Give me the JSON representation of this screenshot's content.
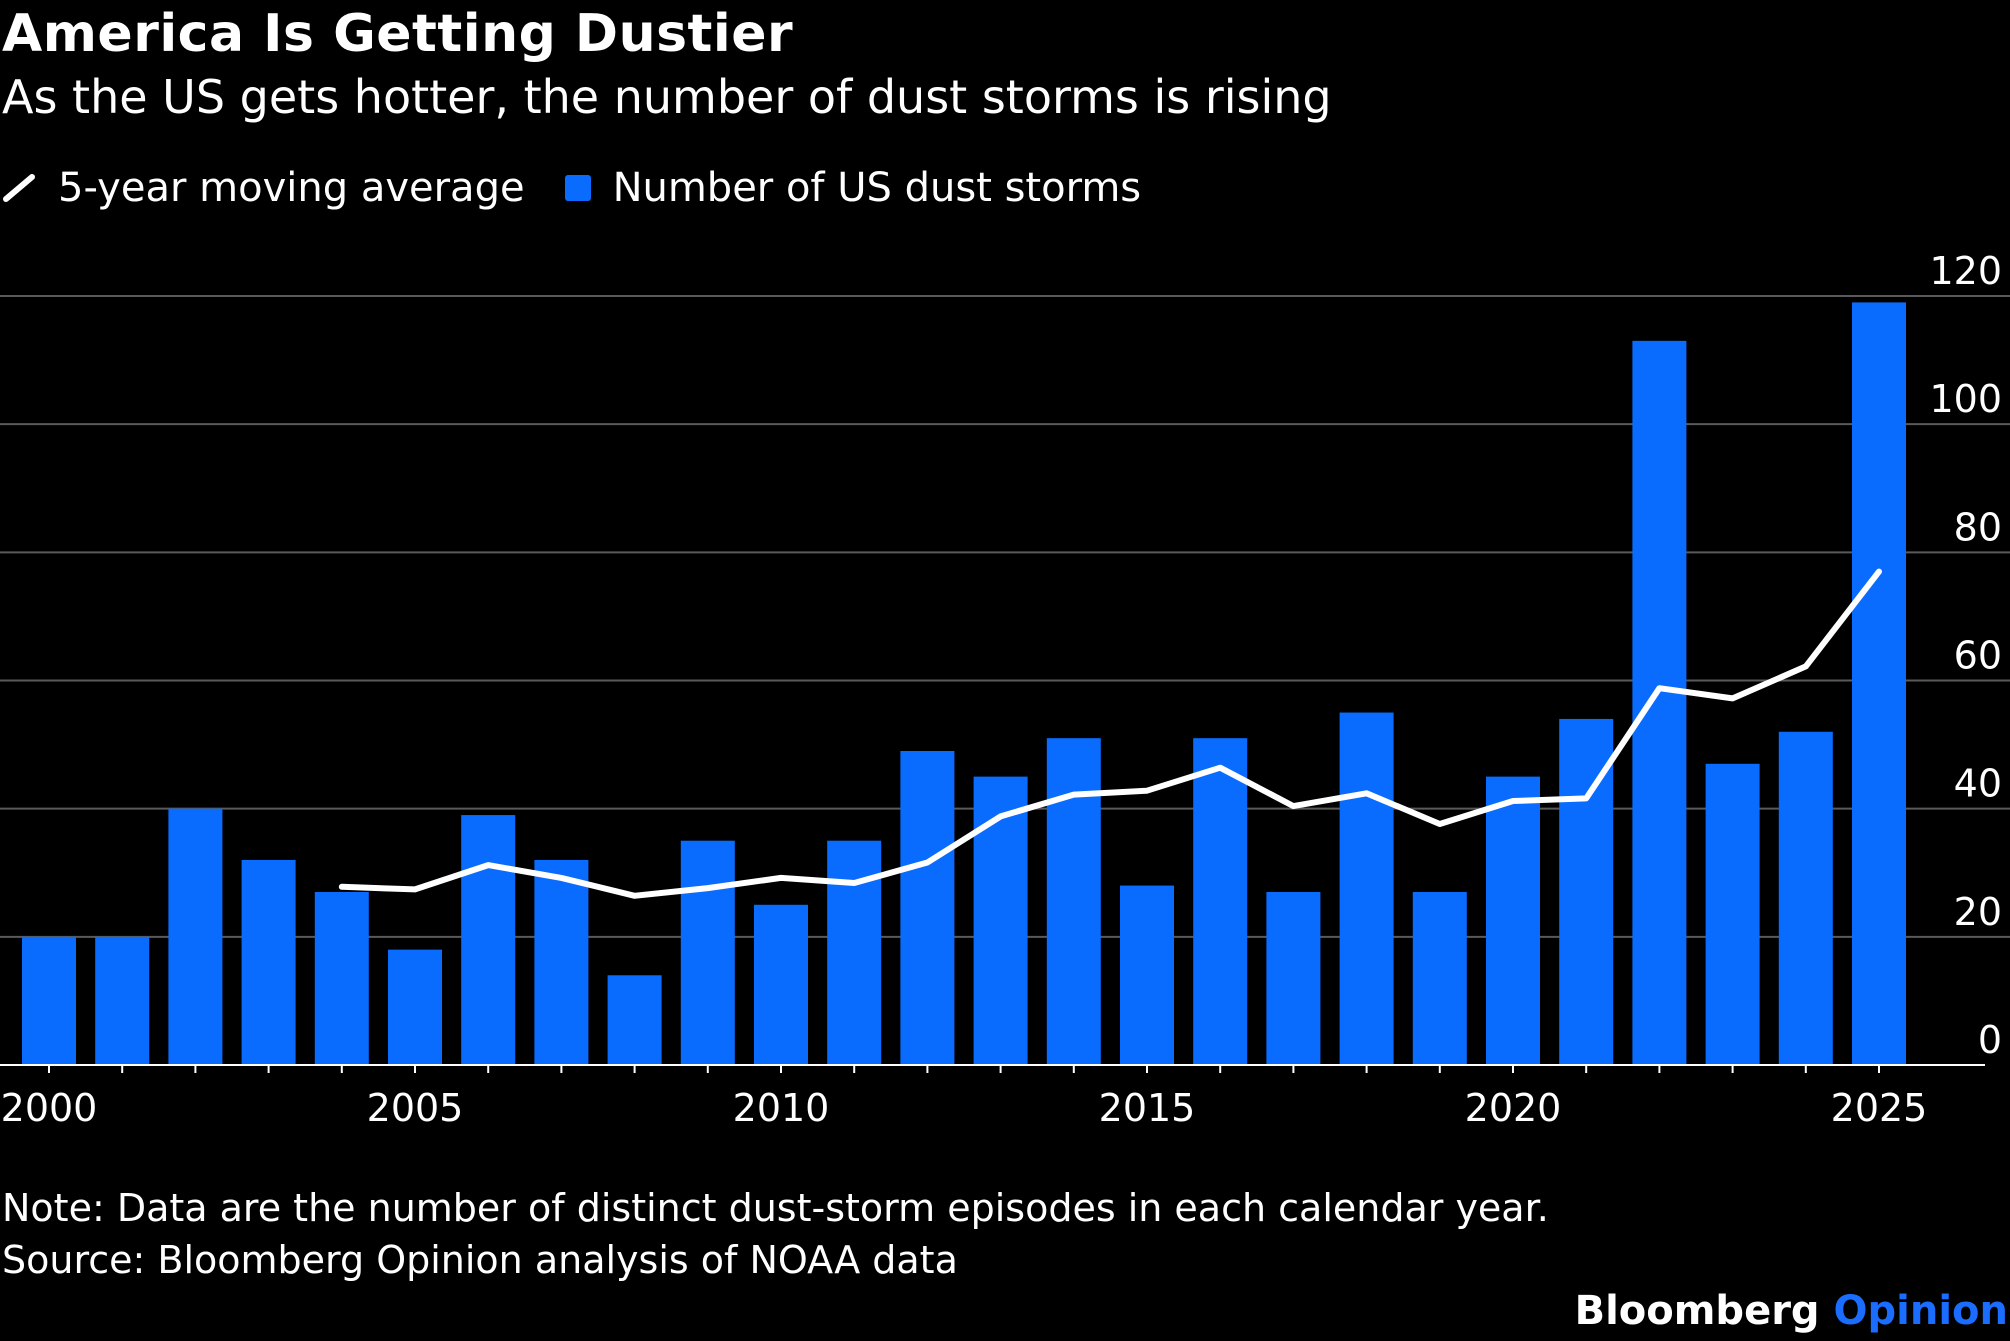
{
  "header": {
    "title": "America Is Getting Dustier",
    "subtitle": "As the US gets hotter, the number of dust storms is rising"
  },
  "legend": {
    "line_label": "5-year moving average",
    "bar_label": "Number of US dust storms"
  },
  "footer": {
    "note": "Note: Data are the number of distinct dust-storm episodes in each calendar year.",
    "source": "Source: Bloomberg Opinion analysis of NOAA data",
    "brand_primary": "Bloomberg",
    "brand_secondary": "Opinion"
  },
  "colors": {
    "background": "#000000",
    "bar": "#0a6cff",
    "line": "#ffffff",
    "grid": "#5a5a5a",
    "text": "#ffffff",
    "brand_accent": "#1a6dff"
  },
  "chart_data": {
    "type": "bar",
    "title": "America Is Getting Dustier",
    "subtitle": "As the US gets hotter, the number of dust storms is rising",
    "x": [
      2000,
      2001,
      2002,
      2003,
      2004,
      2005,
      2006,
      2007,
      2008,
      2009,
      2010,
      2011,
      2012,
      2013,
      2014,
      2015,
      2016,
      2017,
      2018,
      2019,
      2020,
      2021,
      2022,
      2023,
      2024,
      2025
    ],
    "x_tick_labels": [
      "2000",
      "2005",
      "2010",
      "2015",
      "2020",
      "2025"
    ],
    "x_ticks": [
      2000,
      2005,
      2010,
      2015,
      2020,
      2025
    ],
    "ylim": [
      0,
      120
    ],
    "y_ticks": [
      0,
      20,
      40,
      60,
      80,
      100,
      120
    ],
    "y_axis_side": "right",
    "grid": true,
    "legend_position": "top-left",
    "series": [
      {
        "name": "Number of US dust storms",
        "type": "bar",
        "values": [
          20,
          20,
          40,
          32,
          27,
          18,
          39,
          32,
          14,
          35,
          25,
          35,
          49,
          45,
          51,
          28,
          51,
          27,
          55,
          27,
          45,
          54,
          113,
          47,
          52,
          119
        ]
      },
      {
        "name": "5-year moving average",
        "type": "line",
        "values": [
          null,
          null,
          null,
          null,
          27.8,
          27.4,
          31.2,
          29.2,
          26.4,
          27.6,
          29.2,
          28.4,
          31.6,
          38.8,
          42.2,
          42.8,
          46.4,
          40.4,
          42.4,
          37.6,
          41.2,
          41.6,
          58.8,
          57.2,
          62.2,
          77
        ]
      }
    ]
  }
}
